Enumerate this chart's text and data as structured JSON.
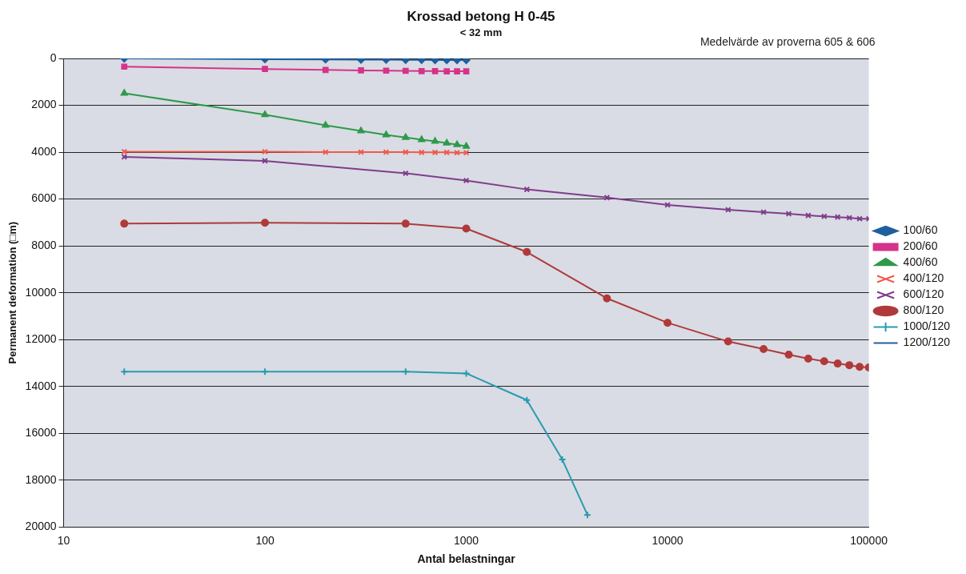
{
  "chart_data": {
    "type": "line",
    "title": "Krossad betong H 0-45",
    "subtitle": "< 32 mm",
    "xlabel": "Antal belastningar",
    "ylabel": "Permanent deformation (□m)",
    "annotations": [
      "Medelvärde av proverna 605 & 606"
    ],
    "log": "x",
    "xlim": [
      10,
      100000
    ],
    "xticks": [
      10,
      100,
      1000,
      10000,
      100000
    ],
    "ylim": [
      20000,
      0
    ],
    "yticks": [
      0,
      2000,
      4000,
      6000,
      8000,
      10000,
      12000,
      14000,
      16000,
      18000,
      20000
    ],
    "grid": "y",
    "legend": "right",
    "line_style": "solid",
    "series": [
      {
        "name": "100/60",
        "color": "#1f5fa0",
        "marker": "diamond",
        "x": [
          20,
          100,
          200,
          300,
          400,
          500,
          600,
          700,
          800,
          900,
          1000
        ],
        "values": [
          0,
          30,
          40,
          50,
          50,
          60,
          60,
          70,
          70,
          70,
          70
        ]
      },
      {
        "name": "200/60",
        "color": "#d6338a",
        "marker": "square",
        "x": [
          20,
          100,
          200,
          300,
          400,
          500,
          600,
          700,
          800,
          900,
          1000
        ],
        "values": [
          350,
          450,
          490,
          510,
          520,
          530,
          540,
          540,
          550,
          550,
          550
        ]
      },
      {
        "name": "400/60",
        "color": "#2e9a4a",
        "marker": "triangle",
        "x": [
          20,
          100,
          200,
          300,
          400,
          500,
          600,
          700,
          800,
          900,
          1000
        ],
        "values": [
          1490,
          2400,
          2850,
          3090,
          3260,
          3370,
          3470,
          3540,
          3610,
          3680,
          3750
        ]
      },
      {
        "name": "400/120",
        "color": "#f05a4a",
        "marker": "cross",
        "x": [
          20,
          100,
          200,
          300,
          400,
          500,
          600,
          700,
          800,
          900,
          1000
        ],
        "values": [
          3980,
          3980,
          4000,
          4000,
          4000,
          4000,
          4010,
          4010,
          4010,
          4020,
          4020
        ]
      },
      {
        "name": "600/120",
        "color": "#803c8c",
        "marker": "cross",
        "x": [
          20,
          100,
          500,
          1000,
          2000,
          5000,
          10000,
          20000,
          30000,
          40000,
          50000,
          60000,
          70000,
          80000,
          90000,
          100000
        ],
        "values": [
          4200,
          4370,
          4900,
          5210,
          5590,
          5940,
          6250,
          6460,
          6560,
          6630,
          6700,
          6740,
          6770,
          6800,
          6840,
          6840
        ]
      },
      {
        "name": "800/120",
        "color": "#b03a3a",
        "marker": "circle",
        "x": [
          20,
          100,
          500,
          1000,
          2000,
          5000,
          10000,
          20000,
          30000,
          40000,
          50000,
          60000,
          70000,
          80000,
          90000,
          100000
        ],
        "values": [
          7050,
          7010,
          7050,
          7260,
          8260,
          10240,
          11280,
          12080,
          12400,
          12640,
          12810,
          12920,
          13020,
          13090,
          13160,
          13190
        ]
      },
      {
        "name": "1000/120",
        "color": "#2a9ab0",
        "marker": "plus",
        "x": [
          20,
          100,
          500,
          1000,
          2000,
          3000,
          4000
        ],
        "values": [
          13370,
          13370,
          13370,
          13440,
          14580,
          17120,
          19480
        ]
      },
      {
        "name": "1200/120",
        "color": "#2060a0",
        "marker": "dash"
      }
    ]
  }
}
